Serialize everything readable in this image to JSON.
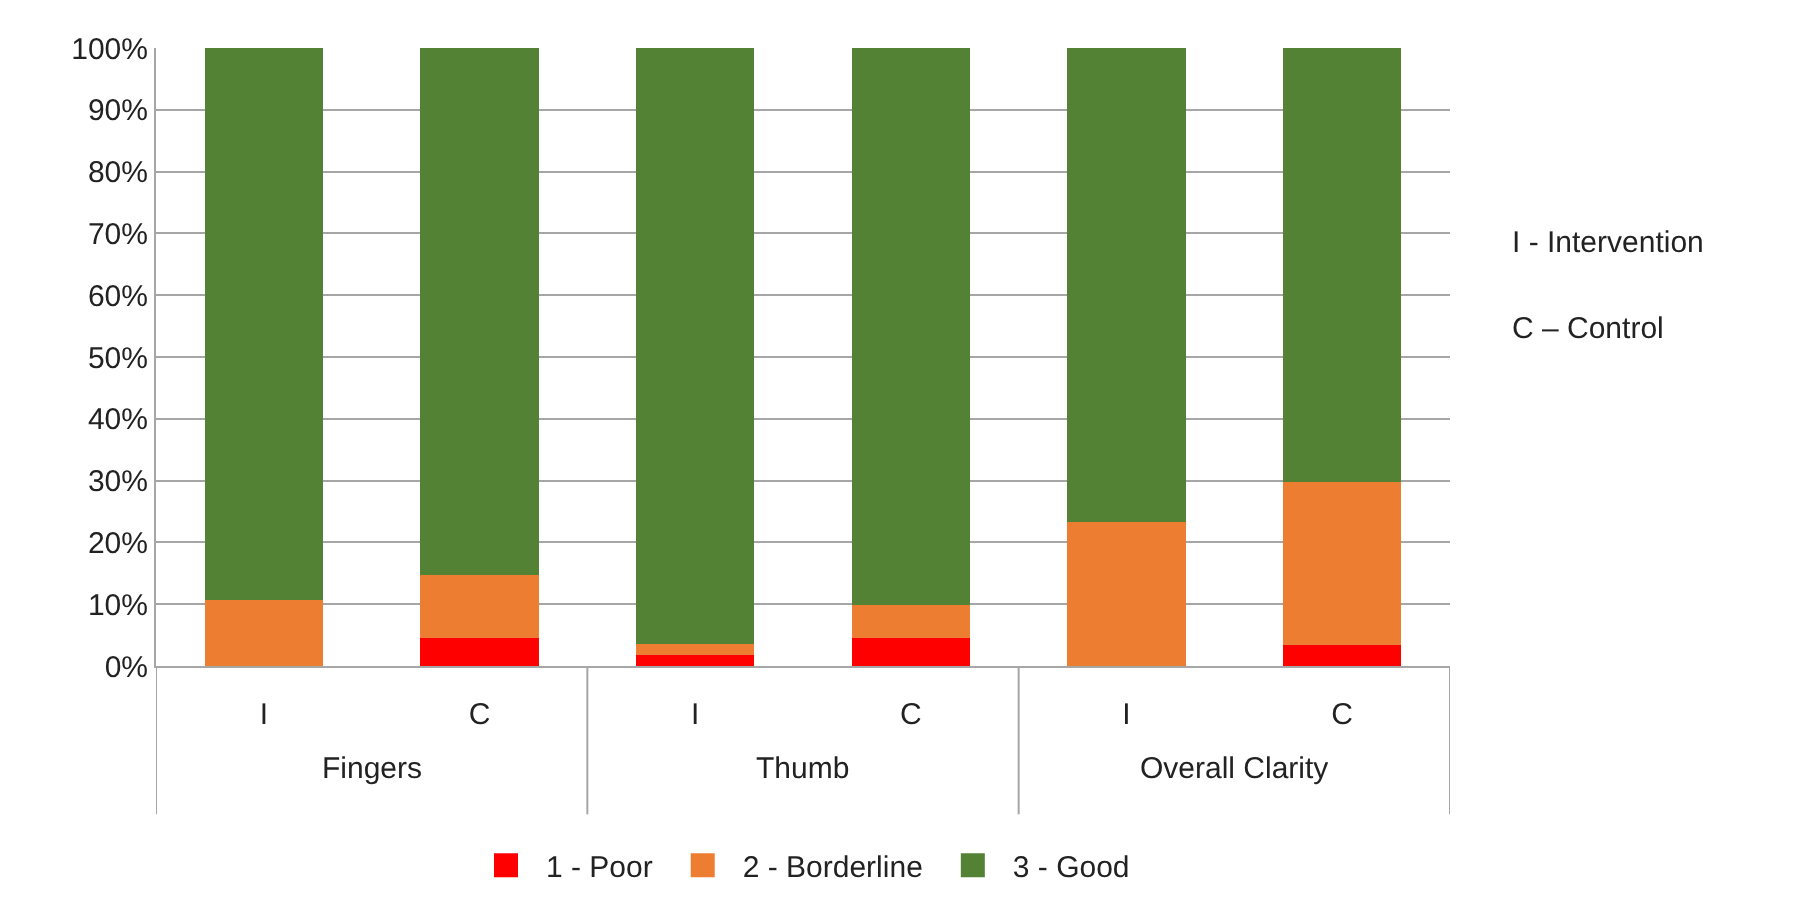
{
  "chart_data": {
    "type": "bar",
    "stacked": true,
    "categories": [
      "I",
      "C",
      "I",
      "C",
      "I",
      "C"
    ],
    "series": [
      {
        "name": "1 - Poor",
        "color": "#ff0000",
        "values": [
          0,
          4.6,
          1.8,
          4.6,
          0,
          3.4
        ]
      },
      {
        "name": "2 - Borderline",
        "color": "#ed7d31",
        "values": [
          10.7,
          10.1,
          1.8,
          5.2,
          23.3,
          26.3
        ]
      },
      {
        "name": "3 - Good",
        "color": "#548235",
        "values": [
          89.3,
          85.3,
          96.4,
          90.2,
          76.7,
          70.3
        ]
      }
    ],
    "ylim": [
      0,
      100
    ],
    "yticks": [
      {
        "value": 0,
        "label": "0%"
      },
      {
        "value": 10,
        "label": "10%"
      },
      {
        "value": 20,
        "label": "20%"
      },
      {
        "value": 30,
        "label": "30%"
      },
      {
        "value": 40,
        "label": "40%"
      },
      {
        "value": 50,
        "label": "50%"
      },
      {
        "value": 60,
        "label": "60%"
      },
      {
        "value": 70,
        "label": "70%"
      },
      {
        "value": 80,
        "label": "80%"
      },
      {
        "value": 90,
        "label": "90%"
      },
      {
        "value": 100,
        "label": "100%"
      }
    ],
    "grid": "y",
    "legend": "bottom",
    "annotations": [
      "Fingers",
      "Thumb",
      "Overall Clarity",
      "I - Intervention",
      "C – Control"
    ]
  }
}
